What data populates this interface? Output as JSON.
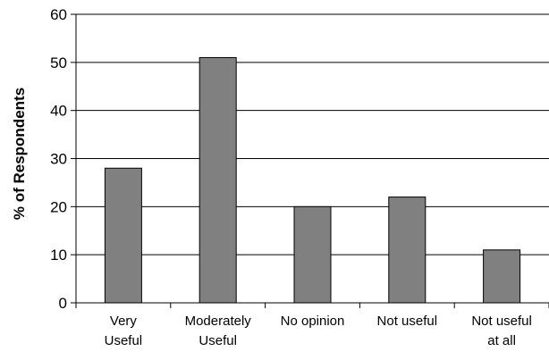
{
  "chart_data": {
    "type": "bar",
    "categories": [
      [
        "Very",
        "Useful"
      ],
      [
        "Moderately",
        "Useful"
      ],
      [
        "No opinion"
      ],
      [
        "Not useful"
      ],
      [
        "Not useful",
        "at all"
      ]
    ],
    "values": [
      28,
      51,
      20,
      22,
      11
    ],
    "ylabel": "% of Respondents",
    "xlabel": "",
    "title": "",
    "ylim": [
      0,
      60
    ],
    "yticks": [
      0,
      10,
      20,
      30,
      40,
      50,
      60
    ],
    "grid": true,
    "bar_color": "#808080",
    "bar_edge_color": "#000000"
  }
}
